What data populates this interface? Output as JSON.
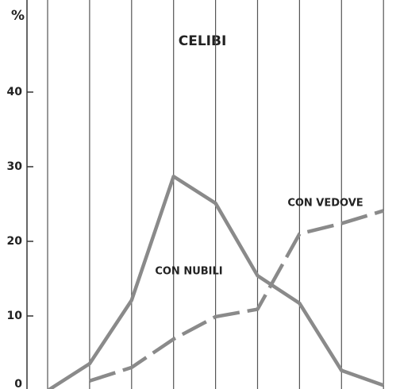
{
  "chart_data": {
    "type": "line",
    "title": "CELIBI",
    "ylabel": "%",
    "categories": [
      null,
      null,
      null,
      null,
      null,
      null,
      null,
      null,
      null
    ],
    "series": [
      {
        "name": "CON NUBILI",
        "color": "#8a8a8a",
        "dashed": false,
        "values": [
          0,
          3.6,
          12.1,
          28.7,
          25.1,
          15.4,
          11.7,
          2.7,
          0.7
        ]
      },
      {
        "name": "CON VEDOVE",
        "color": "#8a8a8a",
        "dashed": true,
        "values": [
          null,
          1.3,
          3.1,
          6.9,
          9.9,
          10.9,
          21,
          22.4,
          24.1
        ]
      }
    ],
    "ylim": [
      0,
      50
    ],
    "yticks": [
      0,
      10,
      20,
      30,
      40
    ],
    "grid": true
  }
}
